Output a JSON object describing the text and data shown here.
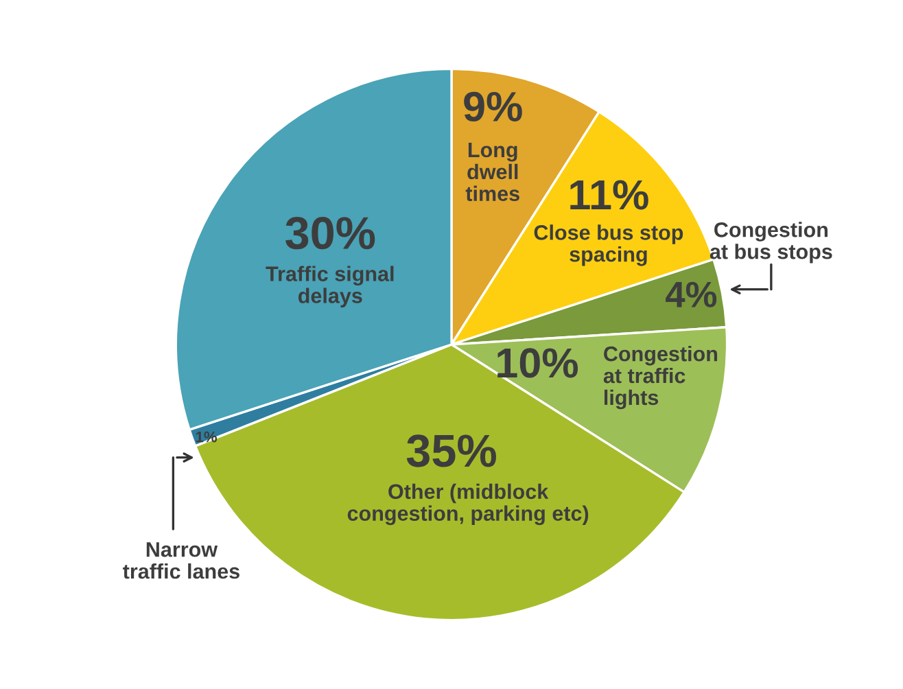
{
  "chart_data": {
    "type": "pie",
    "categories": [
      "Long dwell times",
      "Close bus stop spacing",
      "Congestion at bus stops",
      "Congestion at traffic lights",
      "Other (midblock congestion, parking etc)",
      "Narrow traffic lanes",
      "Traffic signal delays"
    ],
    "values": [
      9,
      11,
      4,
      10,
      35,
      1,
      30
    ],
    "value_labels": [
      "9%",
      "11%",
      "4%",
      "10%",
      "35%",
      "1%",
      "30%"
    ],
    "colors": [
      "#e1a62c",
      "#fdcf10",
      "#7a9a3c",
      "#9dbf58",
      "#a7bc2b",
      "#2f7ea0",
      "#4aa3b7"
    ],
    "legend": false
  }
}
